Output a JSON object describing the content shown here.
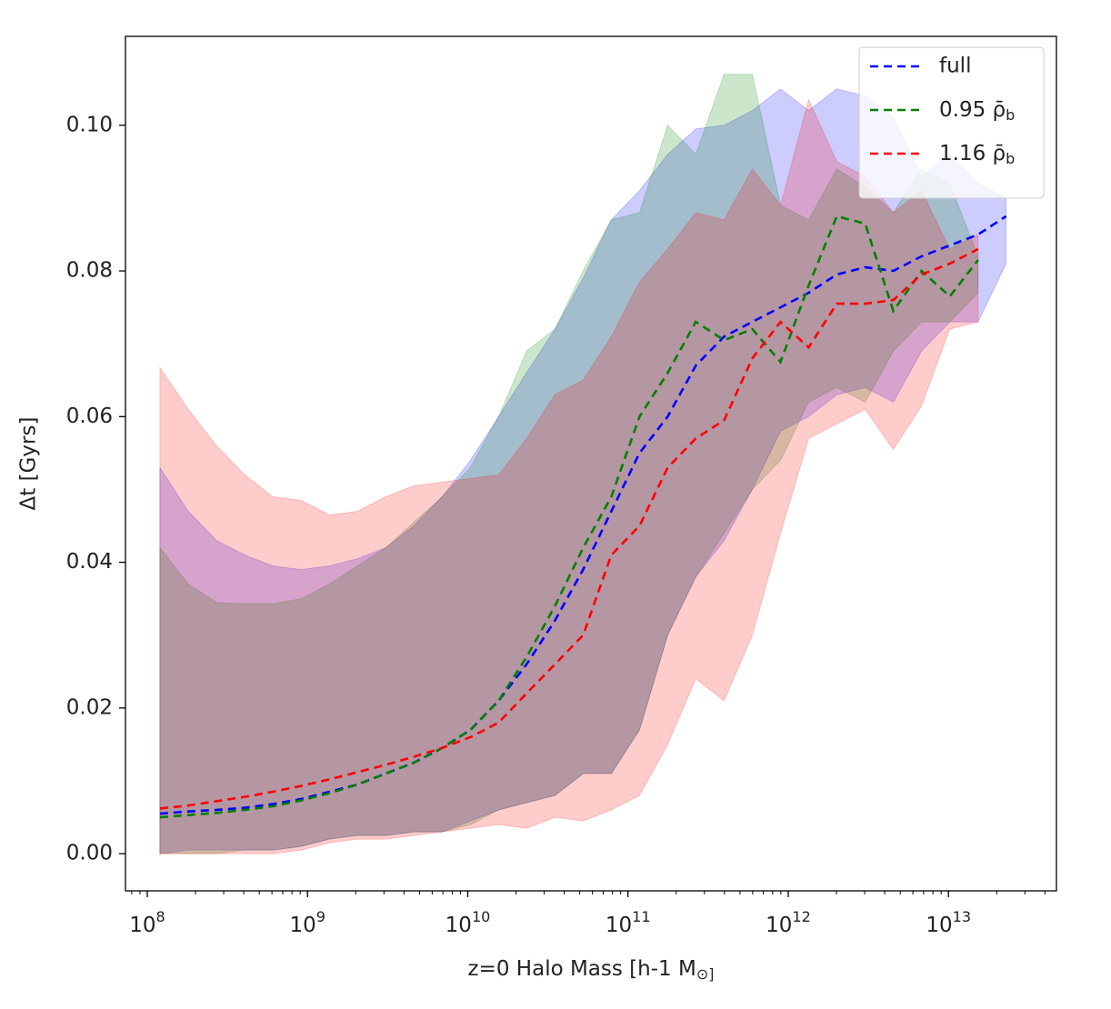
{
  "chart_data": {
    "type": "line",
    "xlabel": "z=0 Halo Mass [h-1 M_⊙]",
    "ylabel": "Δt [Gyrs]",
    "log_x": true,
    "legend": "upper right",
    "xlim": [
      73100000.0,
      47200000000000.0
    ],
    "ylim": [
      -0.0051,
      0.1122
    ],
    "xticks": [
      {
        "value": 100000000.0,
        "label": "10^8"
      },
      {
        "value": 1000000000.0,
        "label": "10^9"
      },
      {
        "value": 10000000000.0,
        "label": "10^10"
      },
      {
        "value": 100000000000.0,
        "label": "10^11"
      },
      {
        "value": 1000000000000.0,
        "label": "10^12"
      },
      {
        "value": 10000000000000.0,
        "label": "10^13"
      }
    ],
    "xticks_minor": [
      80000000.0,
      90000000.0,
      200000000.0,
      300000000.0,
      400000000.0,
      500000000.0,
      600000000.0,
      700000000.0,
      800000000.0,
      900000000.0,
      2000000000.0,
      3000000000.0,
      4000000000.0,
      5000000000.0,
      6000000000.0,
      7000000000.0,
      8000000000.0,
      9000000000.0,
      20000000000.0,
      30000000000.0,
      40000000000.0,
      50000000000.0,
      60000000000.0,
      70000000000.0,
      80000000000.0,
      90000000000.0,
      200000000000.0,
      300000000000.0,
      400000000000.0,
      500000000000.0,
      600000000000.0,
      700000000000.0,
      800000000000.0,
      900000000000.0,
      2000000000000.0,
      3000000000000.0,
      4000000000000.0,
      5000000000000.0,
      6000000000000.0,
      7000000000000.0,
      8000000000000.0,
      9000000000000.0,
      20000000000000.0,
      30000000000000.0,
      40000000000000.0
    ],
    "yticks": [
      {
        "value": 0,
        "label": "0.00"
      },
      {
        "value": 0.02,
        "label": "0.02"
      },
      {
        "value": 0.04,
        "label": "0.04"
      },
      {
        "value": 0.06,
        "label": "0.06"
      },
      {
        "value": 0.08,
        "label": "0.08"
      },
      {
        "value": 0.1,
        "label": "0.10"
      }
    ],
    "series": [
      {
        "name": "full",
        "color": "#0000ff",
        "band_color": "rgba(0,0,255,0.2)",
        "x": [
          120000000.0,
          180000000.0,
          270000000.0,
          406000000.0,
          608000000.0,
          912000000.0,
          1370000000.0,
          2050000000.0,
          3080000000.0,
          4610000000.0,
          6920000000.0,
          10400000000.0,
          15600000000.0,
          23300000000.0,
          35000000000.0,
          52500000000.0,
          78700000000.0,
          118000000000.0,
          177000000000.0,
          265000000000.0,
          398000000000.0,
          597000000000.0,
          895000000000.0,
          1340000000000.0,
          2010000000000.0,
          3020000000000.0,
          4530000000000.0,
          6790000000000.0,
          10200000000000.0,
          15300000000000.0,
          22900000000000.0
        ],
        "values": [
          0.0055,
          0.0058,
          0.006,
          0.0063,
          0.0068,
          0.0075,
          0.0085,
          0.0095,
          0.011,
          0.0125,
          0.0145,
          0.017,
          0.021,
          0.026,
          0.032,
          0.039,
          0.047,
          0.055,
          0.06,
          0.067,
          0.071,
          0.073,
          0.075,
          0.077,
          0.0795,
          0.0805,
          0.08,
          0.082,
          0.0835,
          0.085,
          0.0875
        ],
        "upper": [
          0.053,
          0.047,
          0.043,
          0.041,
          0.0395,
          0.039,
          0.0395,
          0.0405,
          0.042,
          0.045,
          0.049,
          0.054,
          0.06,
          0.066,
          0.072,
          0.079,
          0.087,
          0.091,
          0.096,
          0.0995,
          0.1,
          0.102,
          0.105,
          0.102,
          0.105,
          0.104,
          0.101,
          0.093,
          0.096,
          0.092,
          0.09
        ],
        "lower": [
          0,
          0.0005,
          0.0005,
          0.0005,
          0.0005,
          0.001,
          0.002,
          0.0025,
          0.0025,
          0.003,
          0.003,
          0.0045,
          0.006,
          0.007,
          0.008,
          0.011,
          0.011,
          0.017,
          0.03,
          0.038,
          0.043,
          0.05,
          0.058,
          0.06,
          0.063,
          0.064,
          0.062,
          0.069,
          0.073,
          0.073,
          0.081
        ]
      },
      {
        "name": "0.95 ρ̄_b",
        "color": "#008000",
        "band_color": "rgba(0,128,0,0.2)",
        "x": [
          120000000.0,
          180000000.0,
          270000000.0,
          406000000.0,
          608000000.0,
          912000000.0,
          1370000000.0,
          2050000000.0,
          3080000000.0,
          4610000000.0,
          6920000000.0,
          10400000000.0,
          15600000000.0,
          23300000000.0,
          35000000000.0,
          52500000000.0,
          78700000000.0,
          118000000000.0,
          177000000000.0,
          265000000000.0,
          398000000000.0,
          597000000000.0,
          895000000000.0,
          1340000000000.0,
          2010000000000.0,
          3020000000000.0,
          4530000000000.0,
          6790000000000.0,
          10200000000000.0,
          15300000000000.0
        ],
        "values": [
          0.005,
          0.0053,
          0.0056,
          0.006,
          0.0065,
          0.0073,
          0.0083,
          0.0095,
          0.011,
          0.0125,
          0.0145,
          0.017,
          0.021,
          0.027,
          0.034,
          0.042,
          0.049,
          0.06,
          0.066,
          0.073,
          0.0705,
          0.072,
          0.0675,
          0.078,
          0.0875,
          0.0865,
          0.0745,
          0.08,
          0.0765,
          0.0815
        ],
        "upper": [
          0.042,
          0.037,
          0.0345,
          0.0343,
          0.0343,
          0.035,
          0.037,
          0.0395,
          0.042,
          0.0455,
          0.049,
          0.053,
          0.06,
          0.069,
          0.072,
          0.08,
          0.087,
          0.088,
          0.1,
          0.096,
          0.107,
          0.107,
          0.089,
          0.087,
          0.094,
          0.0915,
          0.088,
          0.094,
          0.092,
          0.082
        ],
        "lower": [
          0,
          0,
          0,
          0.0005,
          0.0005,
          0.001,
          0.002,
          0.0025,
          0.0025,
          0.003,
          0.003,
          0.004,
          0.006,
          0.007,
          0.008,
          0.011,
          0.011,
          0.017,
          0.03,
          0.038,
          0.044,
          0.05,
          0.054,
          0.062,
          0.064,
          0.062,
          0.069,
          0.073,
          0.073,
          0.077
        ]
      },
      {
        "name": "1.16 ρ̄_b",
        "color": "#ff0000",
        "band_color": "rgba(255,0,0,0.2)",
        "x": [
          120000000.0,
          180000000.0,
          270000000.0,
          406000000.0,
          608000000.0,
          912000000.0,
          1370000000.0,
          2050000000.0,
          3080000000.0,
          4610000000.0,
          6920000000.0,
          10400000000.0,
          15600000000.0,
          23300000000.0,
          35000000000.0,
          52500000000.0,
          78700000000.0,
          118000000000.0,
          177000000000.0,
          265000000000.0,
          398000000000.0,
          597000000000.0,
          895000000000.0,
          1340000000000.0,
          2010000000000.0,
          3020000000000.0,
          4530000000000.0,
          6790000000000.0,
          10200000000000.0,
          15300000000000.0
        ],
        "values": [
          0.0062,
          0.0066,
          0.0072,
          0.0078,
          0.0085,
          0.0093,
          0.0102,
          0.0112,
          0.0122,
          0.0133,
          0.0145,
          0.016,
          0.018,
          0.022,
          0.026,
          0.03,
          0.041,
          0.045,
          0.053,
          0.057,
          0.0595,
          0.068,
          0.073,
          0.0695,
          0.0755,
          0.0755,
          0.076,
          0.0795,
          0.081,
          0.083
        ],
        "upper": [
          0.0667,
          0.061,
          0.056,
          0.052,
          0.049,
          0.0485,
          0.0465,
          0.047,
          0.049,
          0.0505,
          0.051,
          0.0515,
          0.052,
          0.057,
          0.063,
          0.065,
          0.071,
          0.0785,
          0.083,
          0.088,
          0.087,
          0.094,
          0.089,
          0.1035,
          0.095,
          0.093,
          0.088,
          0.091,
          0.083,
          0.085
        ],
        "lower": [
          0,
          0,
          0,
          0,
          0,
          0.0005,
          0.0015,
          0.002,
          0.002,
          0.0025,
          0.003,
          0.0035,
          0.004,
          0.0035,
          0.005,
          0.0045,
          0.006,
          0.008,
          0.015,
          0.024,
          0.021,
          0.03,
          0.044,
          0.057,
          0.059,
          0.061,
          0.0555,
          0.0615,
          0.072,
          0.073
        ]
      }
    ]
  }
}
